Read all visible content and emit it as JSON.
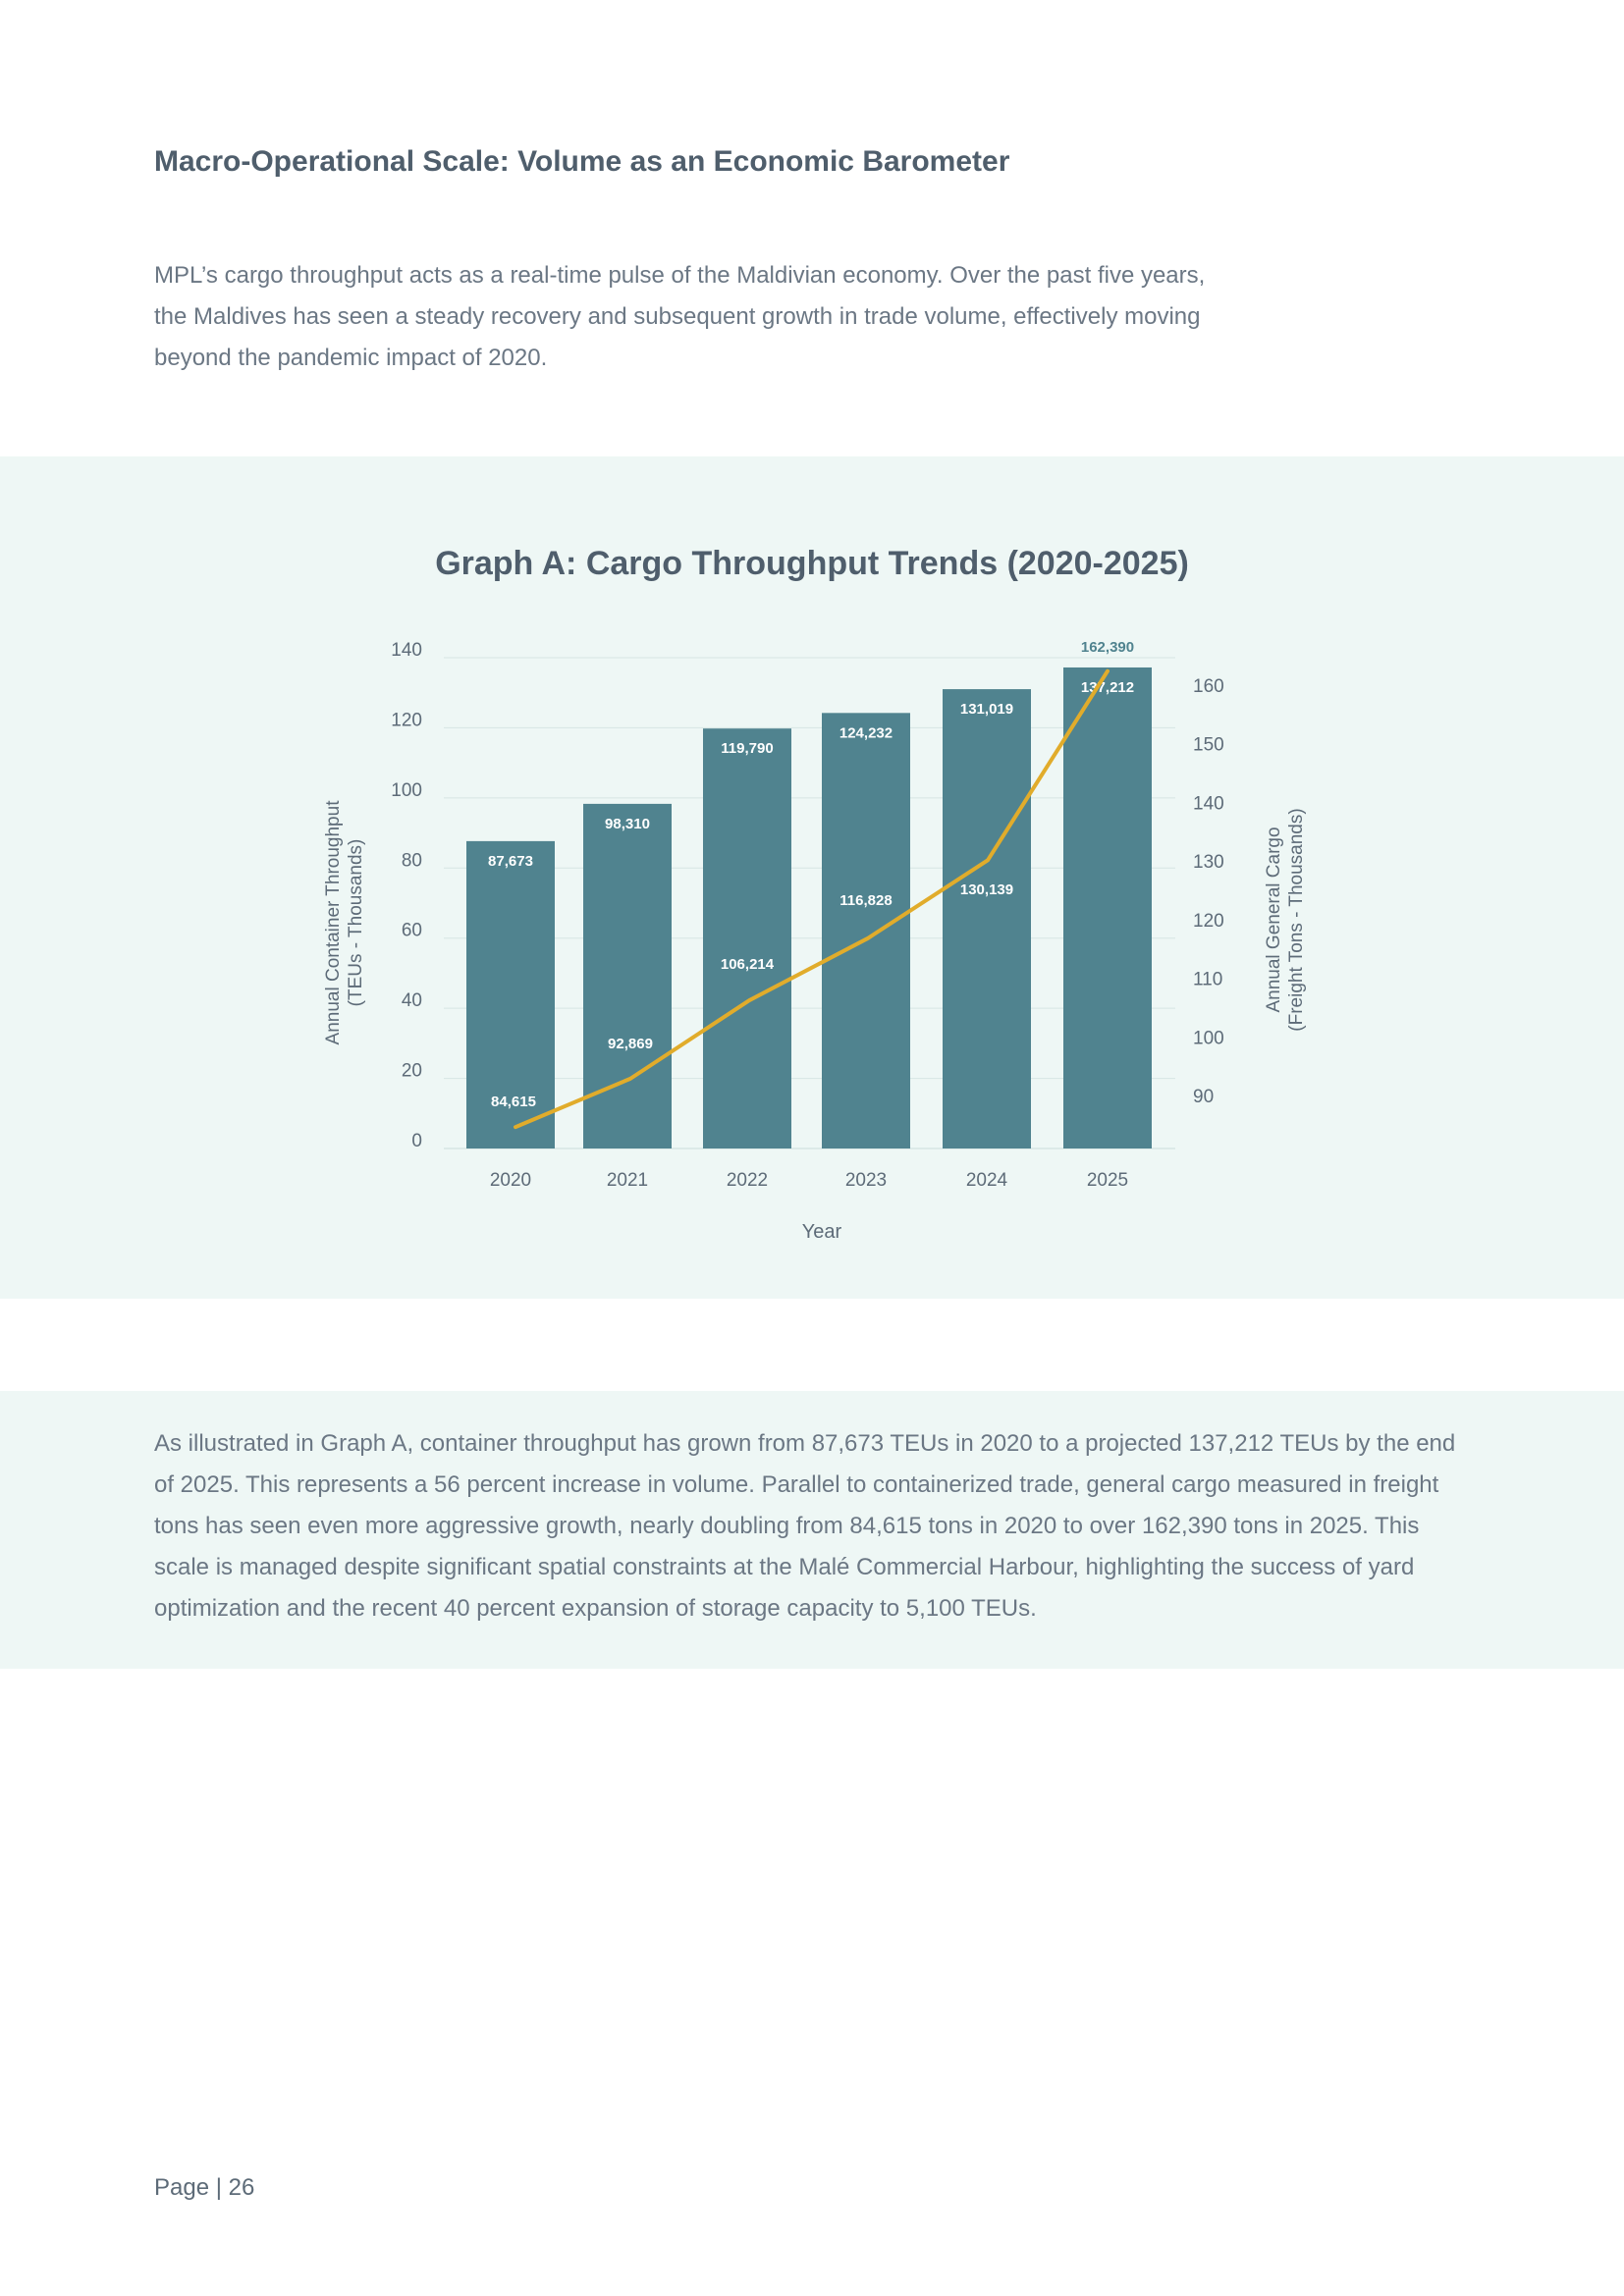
{
  "section": {
    "heading": "Macro-Operational Scale: Volume as an Economic Barometer",
    "intro": "MPL’s cargo throughput acts as a real-time pulse of the Maldivian economy. Over the past five years, the Maldives has seen a steady recovery and subsequent growth in trade volume, effectively moving beyond the pandemic impact of 2020.",
    "summary": "As illustrated in Graph A, container throughput has grown from 87,673 TEUs in 2020 to a projected 137,212 TEUs by the end of 2025. This represents a 56 percent increase in volume. Parallel to containerized trade, general cargo measured in freight tons has seen even more aggressive growth, nearly doubling from 84,615 tons in 2020 to over 162,390 tons in 2025. This scale is managed despite significant spatial constraints at the Malé Commercial Harbour, highlighting the success of yard optimization and the recent 40 percent expansion of storage capacity to 5,100 TEUs."
  },
  "footer": {
    "page_label": "Page | 26"
  },
  "chart_data": {
    "type": "bar+line",
    "title": "Graph A: Cargo Throughput Trends (2020-2025)",
    "xlabel": "Year",
    "ylabel_left": [
      "Annual Container Throughput",
      "(TEUs - Thousands)"
    ],
    "ylabel_right": [
      "Annual General Cargo",
      "(Freight Tons - Thousands)"
    ],
    "categories": [
      "2020",
      "2021",
      "2022",
      "2023",
      "2024",
      "2025"
    ],
    "ylim_left": [
      0,
      140
    ],
    "yticks_left": [
      0,
      20,
      40,
      60,
      80,
      100,
      120,
      140
    ],
    "ylim_right": [
      82,
      164
    ],
    "yticks_right": [
      90,
      100,
      110,
      120,
      130,
      140,
      150,
      160
    ],
    "grid": true,
    "series": [
      {
        "name": "Annual Container Throughput",
        "kind": "bar",
        "axis": "left",
        "values": [
          87.673,
          98.31,
          119.79,
          124.232,
          131.019,
          137.212
        ],
        "labels": [
          "87,673",
          "98,310",
          "119,790",
          "124,232",
          "131,019",
          "137,212"
        ],
        "color": "#50838f"
      },
      {
        "name": "Annual General Cargo",
        "kind": "line",
        "axis": "right",
        "values": [
          84.615,
          92.869,
          106.214,
          116.828,
          130.139,
          162.39
        ],
        "labels": [
          "84,615",
          "92,869",
          "106,214",
          "116,828",
          "130,139",
          "162,390"
        ],
        "color": "#e1ac2b"
      }
    ],
    "colors": {
      "text": "#4f5e6c",
      "tick": "#5d6b78",
      "grid": "#d6e6e3",
      "label_on_bar": "#ffffff",
      "label_top": "#50838f"
    }
  }
}
